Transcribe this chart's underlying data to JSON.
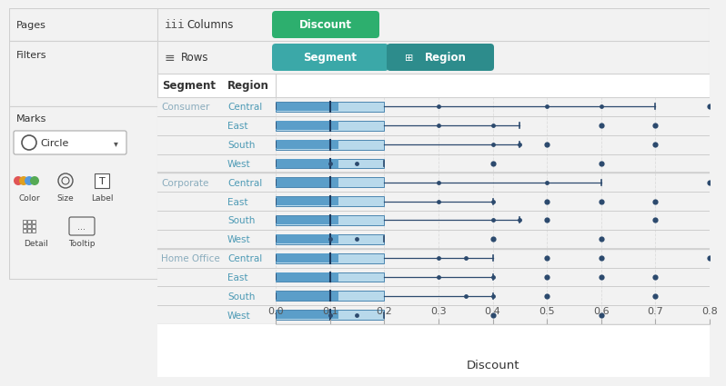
{
  "segments": [
    "Consumer",
    "Corporate",
    "Home Office"
  ],
  "regions": [
    "Central",
    "East",
    "South",
    "West"
  ],
  "box_plots": {
    "Consumer": {
      "Central": {
        "q1": 0.0,
        "med": 0.1,
        "q3": 0.2,
        "wlo": 0.0,
        "whi": 0.7,
        "pts": [
          0.3,
          0.5,
          0.6
        ],
        "outliers": [
          0.8
        ]
      },
      "East": {
        "q1": 0.0,
        "med": 0.1,
        "q3": 0.2,
        "wlo": 0.0,
        "whi": 0.45,
        "pts": [
          0.3,
          0.4
        ],
        "outliers": [
          0.6,
          0.7
        ]
      },
      "South": {
        "q1": 0.0,
        "med": 0.1,
        "q3": 0.2,
        "wlo": 0.0,
        "whi": 0.45,
        "pts": [
          0.4,
          0.45
        ],
        "outliers": [
          0.5,
          0.7
        ]
      },
      "West": {
        "q1": 0.0,
        "med": 0.1,
        "q3": 0.2,
        "wlo": 0.0,
        "whi": 0.2,
        "pts": [
          0.1,
          0.15
        ],
        "outliers": [
          0.4,
          0.6
        ]
      }
    },
    "Corporate": {
      "Central": {
        "q1": 0.0,
        "med": 0.1,
        "q3": 0.2,
        "wlo": 0.0,
        "whi": 0.6,
        "pts": [
          0.3,
          0.5
        ],
        "outliers": [
          0.8
        ]
      },
      "East": {
        "q1": 0.0,
        "med": 0.1,
        "q3": 0.2,
        "wlo": 0.0,
        "whi": 0.4,
        "pts": [
          0.3,
          0.4
        ],
        "outliers": [
          0.5,
          0.6,
          0.7
        ]
      },
      "South": {
        "q1": 0.0,
        "med": 0.1,
        "q3": 0.2,
        "wlo": 0.0,
        "whi": 0.45,
        "pts": [
          0.4,
          0.45
        ],
        "outliers": [
          0.5,
          0.7
        ]
      },
      "West": {
        "q1": 0.0,
        "med": 0.1,
        "q3": 0.2,
        "wlo": 0.0,
        "whi": 0.2,
        "pts": [
          0.1,
          0.15
        ],
        "outliers": [
          0.4,
          0.6
        ]
      }
    },
    "Home Office": {
      "Central": {
        "q1": 0.0,
        "med": 0.1,
        "q3": 0.2,
        "wlo": 0.0,
        "whi": 0.4,
        "pts": [
          0.3,
          0.35
        ],
        "outliers": [
          0.5,
          0.6,
          0.8
        ]
      },
      "East": {
        "q1": 0.0,
        "med": 0.1,
        "q3": 0.2,
        "wlo": 0.0,
        "whi": 0.4,
        "pts": [
          0.3,
          0.4
        ],
        "outliers": [
          0.5,
          0.6,
          0.7
        ]
      },
      "South": {
        "q1": 0.0,
        "med": 0.1,
        "q3": 0.2,
        "wlo": 0.0,
        "whi": 0.4,
        "pts": [
          0.35,
          0.4
        ],
        "outliers": [
          0.5,
          0.7
        ]
      },
      "West": {
        "q1": 0.0,
        "med": 0.1,
        "q3": 0.2,
        "wlo": 0.0,
        "whi": 0.2,
        "pts": [
          0.1,
          0.15
        ],
        "outliers": [
          0.4,
          0.6
        ]
      }
    }
  },
  "box_light": "#b8d9eb",
  "box_dark": "#5b9ec9",
  "box_edge": "#4a86b0",
  "whisker_col": "#2c4a6e",
  "outlier_col": "#2c4a6e",
  "median_col": "#1c3a5e",
  "dot_col": "#2c4a6e",
  "x_min": 0.0,
  "x_max": 0.8,
  "x_ticks": [
    0.0,
    0.1,
    0.2,
    0.3,
    0.4,
    0.5,
    0.6,
    0.7,
    0.8
  ],
  "xlabel": "Discount",
  "seg_color_Consumer": "#8aacbd",
  "seg_color_Corporate": "#8aacbd",
  "seg_color_Home_Office": "#8aacbd",
  "region_color": "#4d9ab5",
  "green_pill": "#2daf6e",
  "teal_pill": "#3ba8a8",
  "teal_dark_pill": "#2d8c8c",
  "panel_bg": "#ffffff",
  "left_bg": "#f2f2f2",
  "header_bg": "#f2f2f2",
  "border_col": "#d0d0d0",
  "sep_col": "#c8c8c8"
}
